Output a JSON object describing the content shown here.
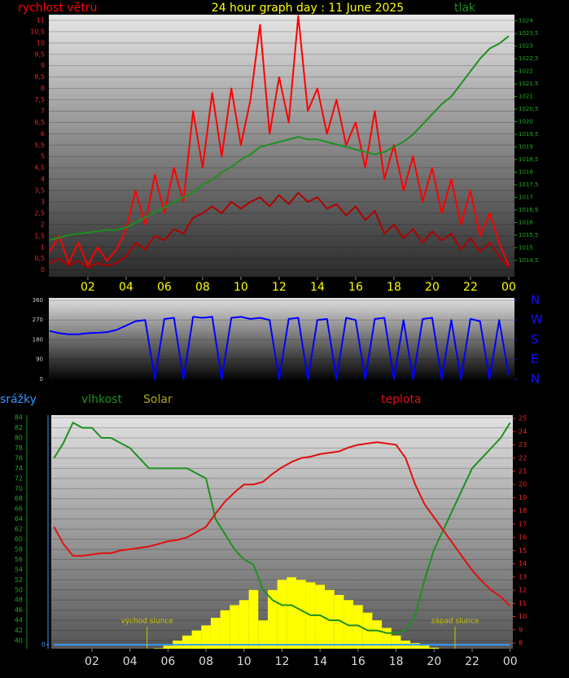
{
  "chart_data": [
    {
      "type": "line",
      "title": "24 hour graph day : 11 June 2025",
      "title_color": "#ffff00",
      "x": [
        0,
        0.5,
        1,
        1.5,
        2,
        2.5,
        3,
        3.5,
        4,
        4.5,
        5,
        5.5,
        6,
        6.5,
        7,
        7.5,
        8,
        8.5,
        9,
        9.5,
        10,
        10.5,
        11,
        11.5,
        12,
        12.5,
        13,
        13.5,
        14,
        14.5,
        15,
        15.5,
        16,
        16.5,
        17,
        17.5,
        18,
        18.5,
        19,
        19.5,
        20,
        20.5,
        21,
        21.5,
        22,
        22.5,
        23,
        23.5,
        24
      ],
      "xlim": [
        -0.04,
        24.3
      ],
      "xticks": [
        {
          "value": 2,
          "label": "02"
        },
        {
          "value": 4,
          "label": "04"
        },
        {
          "value": 6,
          "label": "06"
        },
        {
          "value": 8,
          "label": "08"
        },
        10,
        12,
        14,
        16,
        18,
        20,
        22,
        {
          "value": 24,
          "label": "00"
        }
      ],
      "xtick_color": "#ffff00",
      "ylim": [
        -0.3,
        11.25
      ],
      "yticks": [
        0,
        {
          "value": 0.5,
          "label": "0,5"
        },
        1,
        {
          "value": 1.5,
          "label": "1,5"
        },
        2,
        {
          "value": 2.5,
          "label": "2,5"
        },
        3,
        {
          "value": 3.5,
          "label": "3,5"
        },
        4,
        {
          "value": 4.5,
          "label": "4,5"
        },
        5,
        {
          "value": 5.5,
          "label": "5,5"
        },
        6,
        {
          "value": 6.5,
          "label": "6,5"
        },
        7,
        {
          "value": 7.5,
          "label": "7,5"
        },
        8,
        {
          "value": 8.5,
          "label": "8,5"
        },
        9,
        {
          "value": 9.5,
          "label": "9,5"
        },
        10,
        {
          "value": 10.5,
          "label": "10,5"
        },
        11
      ],
      "ytick_color": "#ff2020",
      "y2lim": [
        1013.85,
        1024.25
      ],
      "y2ticks": [
        {
          "value": 1014.5,
          "label": "1014,5"
        },
        1015,
        {
          "value": 1015.5,
          "label": "1015,5"
        },
        1016,
        {
          "value": 1016.5,
          "label": "1016,5"
        },
        1017,
        {
          "value": 1017.5,
          "label": "1017,5"
        },
        1018,
        {
          "value": 1018.5,
          "label": "1018,5"
        },
        1019,
        {
          "value": 1019.5,
          "label": "1019,5"
        },
        1020,
        {
          "value": 1020.5,
          "label": "1020,5"
        },
        1021,
        {
          "value": 1021.5,
          "label": "1021,5"
        },
        1022,
        {
          "value": 1022.5,
          "label": "1022,5"
        },
        1023,
        {
          "value": 1023.5,
          "label": "1023,5"
        },
        1024
      ],
      "y2tick_color": "#22aa22",
      "grid": true,
      "series": [
        {
          "name": "rychlost větru",
          "color": "#ff0000",
          "axis": "y",
          "values": [
            0.8,
            1.5,
            0.3,
            1.2,
            0.2,
            1.0,
            0.4,
            0.9,
            1.8,
            3.5,
            2.0,
            4.2,
            2.5,
            4.5,
            3.0,
            7.0,
            4.5,
            7.8,
            5.0,
            8.0,
            5.5,
            7.5,
            10.8,
            6.0,
            8.5,
            6.5,
            11.2,
            7.0,
            8.0,
            6.0,
            7.5,
            5.5,
            6.5,
            4.5,
            7.0,
            4.0,
            5.5,
            3.5,
            5.0,
            3.0,
            4.5,
            2.5,
            4.0,
            2.0,
            3.5,
            1.5,
            2.5,
            1.2,
            0.2
          ]
        },
        {
          "color": "#b00000",
          "axis": "y",
          "values": [
            0.3,
            0.5,
            0.2,
            0.4,
            0.1,
            0.3,
            0.2,
            0.3,
            0.6,
            1.2,
            0.9,
            1.5,
            1.3,
            1.8,
            1.6,
            2.3,
            2.5,
            2.8,
            2.5,
            3.0,
            2.7,
            3.0,
            3.2,
            2.8,
            3.3,
            2.9,
            3.4,
            3.0,
            3.2,
            2.7,
            2.9,
            2.4,
            2.8,
            2.2,
            2.6,
            1.6,
            2.0,
            1.4,
            1.8,
            1.2,
            1.7,
            1.3,
            1.6,
            0.9,
            1.4,
            0.8,
            1.2,
            0.6,
            0.1
          ]
        },
        {
          "name": "tlak",
          "color": "#1f8f1f",
          "axis": "y2",
          "values": [
            1015.3,
            1015.4,
            1015.5,
            1015.55,
            1015.6,
            1015.65,
            1015.7,
            1015.7,
            1015.8,
            1016.0,
            1016.2,
            1016.4,
            1016.6,
            1016.8,
            1017.0,
            1017.2,
            1017.5,
            1017.7,
            1018.0,
            1018.2,
            1018.5,
            1018.7,
            1019.0,
            1019.1,
            1019.2,
            1019.3,
            1019.4,
            1019.3,
            1019.3,
            1019.2,
            1019.1,
            1019.0,
            1018.9,
            1018.8,
            1018.7,
            1018.8,
            1019.0,
            1019.2,
            1019.5,
            1019.9,
            1020.3,
            1020.7,
            1021.0,
            1021.5,
            1022.0,
            1022.5,
            1022.9,
            1023.1,
            1023.4
          ]
        }
      ]
    },
    {
      "type": "line",
      "x": [
        0,
        0.5,
        1,
        1.5,
        2,
        2.5,
        3,
        3.5,
        4,
        4.5,
        5,
        5.5,
        6,
        6.5,
        7,
        7.5,
        8,
        8.5,
        9,
        9.5,
        10,
        10.5,
        11,
        11.5,
        12,
        12.5,
        13,
        13.5,
        14,
        14.5,
        15,
        15.5,
        16,
        16.5,
        17,
        17.5,
        18,
        18.5,
        19,
        19.5,
        20,
        20.5,
        21,
        21.5,
        22,
        22.5,
        23,
        23.5,
        24
      ],
      "xlim": [
        -0.04,
        24.3
      ],
      "ylim": [
        -7.4,
        371
      ],
      "yticks": [
        0,
        90,
        180,
        270,
        360
      ],
      "ytick_color": "#cccccc",
      "y2lim": [
        -7.4,
        371
      ],
      "y2ticks": [
        {
          "value": 360,
          "label": "N"
        },
        {
          "value": 270,
          "label": "W"
        },
        {
          "value": 180,
          "label": "S"
        },
        {
          "value": 90,
          "label": "E"
        },
        {
          "value": 0,
          "label": "N"
        }
      ],
      "y2tick_color": "#1010ff",
      "grid": true,
      "series": [
        {
          "color": "#0000ff",
          "axis": "y",
          "values": [
            220,
            210,
            205,
            205,
            210,
            212,
            215,
            225,
            245,
            265,
            270,
            0,
            275,
            280,
            0,
            285,
            280,
            285,
            0,
            280,
            285,
            275,
            280,
            270,
            0,
            275,
            280,
            0,
            270,
            275,
            0,
            280,
            270,
            0,
            275,
            280,
            0,
            270,
            0,
            275,
            280,
            0,
            270,
            0,
            275,
            265,
            0,
            270,
            20
          ]
        }
      ]
    },
    {
      "type": "line",
      "x": [
        0,
        0.5,
        1,
        1.5,
        2,
        2.5,
        3,
        3.5,
        4,
        4.5,
        5,
        5.5,
        6,
        6.5,
        7,
        7.5,
        8,
        8.5,
        9,
        9.5,
        10,
        10.5,
        11,
        11.5,
        12,
        12.5,
        13,
        13.5,
        14,
        14.5,
        15,
        15.5,
        16,
        16.5,
        17,
        17.5,
        18,
        18.5,
        19,
        19.5,
        20,
        20.5,
        21,
        21.5,
        22,
        22.5,
        23,
        23.5,
        24
      ],
      "xlim": [
        -0.14,
        24.14
      ],
      "xticks": [
        {
          "value": 2,
          "label": "02"
        },
        {
          "value": 4,
          "label": "04"
        },
        {
          "value": 6,
          "label": "06"
        },
        {
          "value": 8,
          "label": "08"
        },
        10,
        12,
        14,
        16,
        18,
        20,
        22,
        {
          "value": 24,
          "label": "00"
        }
      ],
      "xtick_color": "#dddddd",
      "ylim": [
        38.4,
        84.5
      ],
      "yticks": [
        40,
        42,
        44,
        46,
        48,
        50,
        52,
        54,
        56,
        58,
        60,
        62,
        64,
        66,
        68,
        70,
        72,
        74,
        76,
        78,
        80,
        82,
        84
      ],
      "ytick_color": "#22aa22",
      "y2lim": [
        7.57,
        25.25
      ],
      "y2ticks": [
        8,
        9,
        10,
        11,
        12,
        13,
        14,
        15,
        16,
        17,
        18,
        19,
        20,
        21,
        22,
        23,
        24,
        25
      ],
      "y2tick_color": "#ff2020",
      "y3lim": [
        -0.07,
        4
      ],
      "y3ticks": [
        0
      ],
      "y3tick_color": "#3399ff",
      "grid": true,
      "annotations": [
        {
          "text": "východ slunce",
          "x": 4.9
        },
        {
          "text": "západ slunce",
          "x": 21.1
        }
      ],
      "annotation_color": "#c8c800",
      "series": [
        {
          "name": "srážky",
          "color": "#3399ff",
          "axis": "y3",
          "values": [
            0,
            0,
            0,
            0,
            0,
            0,
            0,
            0,
            0,
            0,
            0,
            0,
            0,
            0,
            0,
            0,
            0,
            0,
            0,
            0,
            0,
            0,
            0,
            0,
            0,
            0,
            0,
            0,
            0,
            0,
            0,
            0,
            0,
            0,
            0,
            0,
            0,
            0,
            0,
            0,
            0,
            0,
            0,
            0,
            0,
            0,
            0,
            0,
            0
          ]
        },
        {
          "name": "vlhkost",
          "color": "#1f8f1f",
          "axis": "y",
          "values": [
            76,
            79,
            83,
            82,
            82,
            80,
            80,
            79,
            78,
            76,
            74,
            74,
            74,
            74,
            74,
            73,
            72,
            64,
            61,
            58,
            56,
            55,
            50,
            48,
            47,
            47,
            46,
            45,
            45,
            44,
            44,
            43,
            43,
            42,
            42,
            41.5,
            41.5,
            42,
            45,
            52,
            58,
            62,
            66,
            70,
            74,
            76,
            78,
            80,
            83
          ]
        },
        {
          "name": "Solar",
          "color": "#ffff00",
          "label_color": "#a8a820",
          "axis": "y",
          "style": "bars",
          "values": [
            38.4,
            38.4,
            38.4,
            38.4,
            38.4,
            38.4,
            38.4,
            38.4,
            38.4,
            38.4,
            38.4,
            38.5,
            39,
            40,
            41,
            42,
            43,
            44.5,
            46,
            47,
            48,
            50,
            44,
            50,
            52,
            52.5,
            52,
            51.5,
            51,
            50,
            49,
            48,
            47,
            45.5,
            44,
            42.5,
            41,
            40,
            39.5,
            39,
            38.6,
            38.4,
            38.4,
            38.4,
            38.4,
            38.4,
            38.4,
            38.4,
            38.4
          ]
        },
        {
          "name": "teplota",
          "color": "#e01010",
          "axis": "y2",
          "values": [
            16.8,
            15.5,
            14.6,
            14.6,
            14.7,
            14.8,
            14.8,
            15,
            15.1,
            15.2,
            15.3,
            15.5,
            15.7,
            15.8,
            16,
            16.4,
            16.8,
            17.8,
            18.7,
            19.4,
            20,
            20,
            20.2,
            20.8,
            21.3,
            21.7,
            22,
            22.1,
            22.3,
            22.4,
            22.5,
            22.8,
            23,
            23.1,
            23.2,
            23.1,
            23,
            22,
            20,
            18.5,
            17.5,
            16.5,
            15.5,
            14.5,
            13.5,
            12.7,
            12,
            11.5,
            10.8
          ]
        }
      ]
    }
  ]
}
